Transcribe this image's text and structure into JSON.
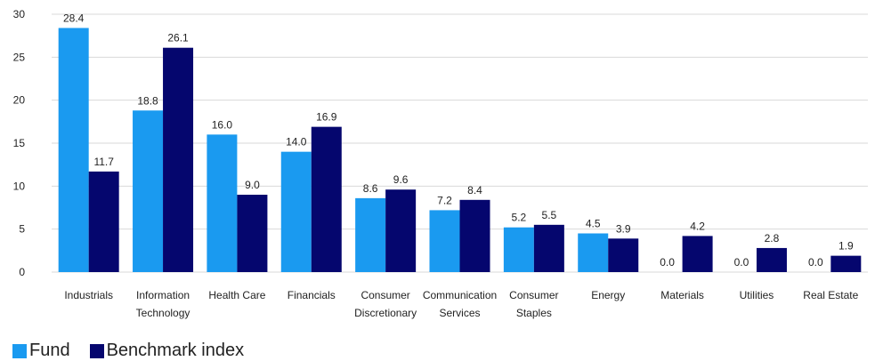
{
  "chart_data": {
    "type": "bar",
    "categories": [
      [
        "Industrials"
      ],
      [
        "Information",
        "Technology"
      ],
      [
        "Health Care"
      ],
      [
        "Financials"
      ],
      [
        "Consumer",
        "Discretionary"
      ],
      [
        "Communication",
        "Services"
      ],
      [
        "Consumer",
        "Staples"
      ],
      [
        "Energy"
      ],
      [
        "Materials"
      ],
      [
        "Utilities"
      ],
      [
        "Real Estate"
      ]
    ],
    "series": [
      {
        "name": "Fund",
        "color": "#1a9af0",
        "values": [
          28.4,
          18.8,
          16.0,
          14.0,
          8.6,
          7.2,
          5.2,
          4.5,
          0.0,
          0.0,
          0.0
        ],
        "labels": [
          "28.4",
          "18.8",
          "16.0",
          "14.0",
          "8.6",
          "7.2",
          "5.2",
          "4.5",
          "0.0",
          "0.0",
          "0.0"
        ]
      },
      {
        "name": "Benchmark index",
        "color": "#05066e",
        "values": [
          11.7,
          26.1,
          9.0,
          16.9,
          9.6,
          8.4,
          5.5,
          3.9,
          4.2,
          2.8,
          1.9
        ],
        "labels": [
          "11.7",
          "26.1",
          "9.0",
          "16.9",
          "9.6",
          "8.4",
          "5.5",
          "3.9",
          "4.2",
          "2.8",
          "1.9"
        ]
      }
    ],
    "yticks": [
      0,
      5,
      10,
      15,
      20,
      25,
      30
    ],
    "ylim": [
      0,
      30
    ],
    "grid": true,
    "legend": "bottom-left"
  },
  "legend": {
    "fund_label": "Fund",
    "benchmark_label": "Benchmark index"
  }
}
